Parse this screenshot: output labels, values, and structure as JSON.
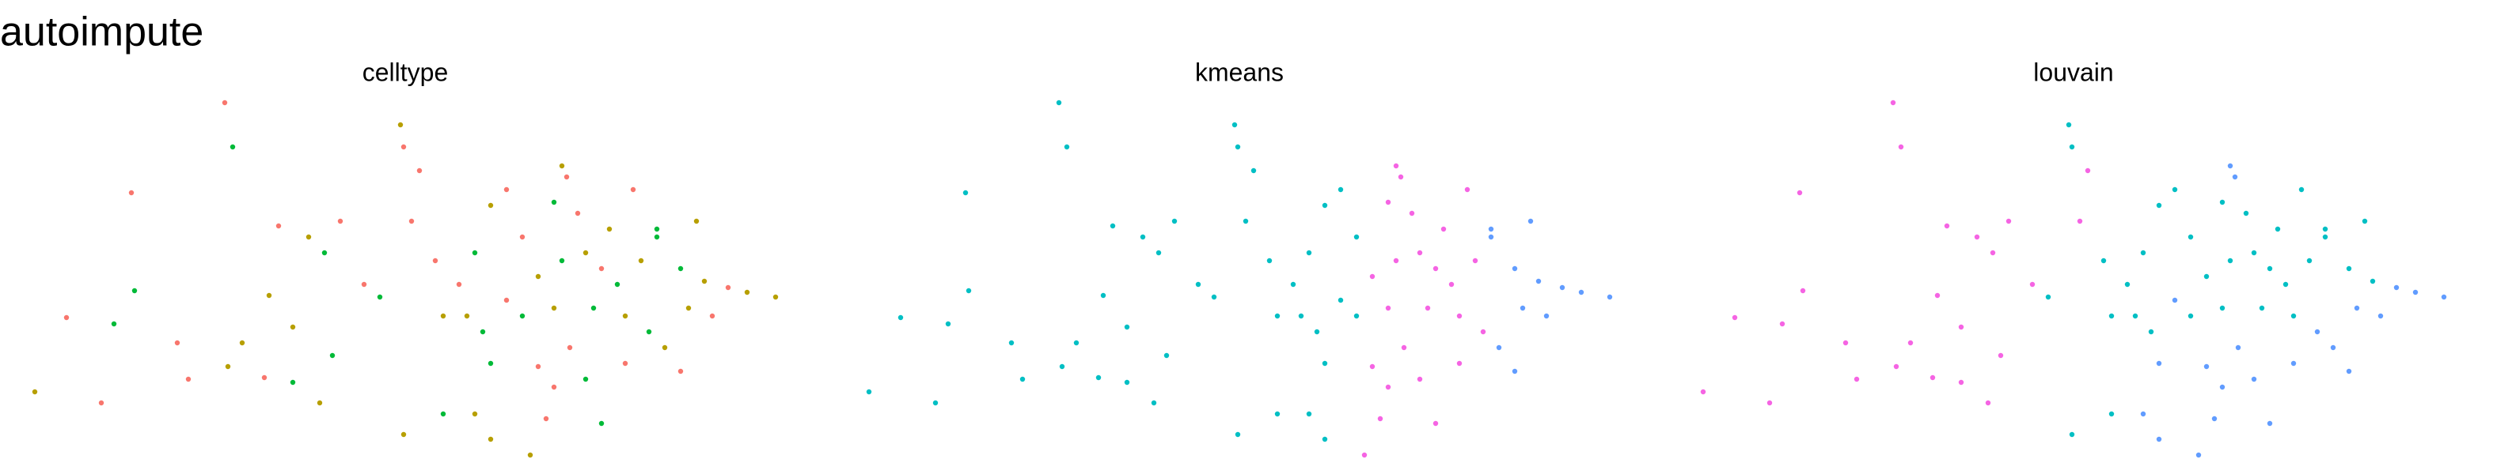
{
  "title": "autoimpute",
  "chart_data": [
    {
      "type": "scatter",
      "title": "celltype",
      "xlim": [
        0,
        500
      ],
      "ylim": [
        0,
        300
      ],
      "series": [
        {
          "color": "#F8766D",
          "x": [
            142,
            255,
            83,
            42,
            64,
            112,
            119,
            167,
            176,
            215,
            230,
            260,
            265,
            358,
            330,
            290,
            320,
            380,
            460,
            400,
            360,
            350,
            430,
            365,
            320,
            340,
            275,
            450,
            395,
            345
          ],
          "values": [
            235,
            207,
            178,
            99,
            45,
            83,
            60,
            61,
            157,
            160,
            120,
            160,
            192,
            188,
            150,
            120,
            110,
            130,
            118,
            180,
            80,
            55,
            65,
            165,
            180,
            68,
            135,
            100,
            70,
            35
          ]
        },
        {
          "color": "#B79F00",
          "x": [
            253,
            22,
            144,
            153,
            202,
            195,
            170,
            185,
            255,
            300,
            310,
            335,
            355,
            310,
            295,
            340,
            370,
            395,
            405,
            445,
            472,
            490,
            420,
            350,
            385,
            280,
            440,
            435
          ],
          "values": [
            221,
            52,
            68,
            83,
            45,
            150,
            113,
            93,
            25,
            38,
            22,
            12,
            195,
            170,
            100,
            125,
            140,
            100,
            135,
            122,
            115,
            112,
            80,
            105,
            155,
            100,
            160,
            105
          ]
        },
        {
          "color": "#00BA38",
          "x": [
            147,
            85,
            72,
            185,
            205,
            210,
            240,
            280,
            350,
            300,
            305,
            355,
            390,
            415,
            430,
            415,
            370,
            380,
            330,
            410,
            375,
            310
          ],
          "values": [
            207,
            116,
            95,
            58,
            140,
            75,
            112,
            38,
            172,
            140,
            90,
            135,
            120,
            150,
            130,
            155,
            60,
            32,
            100,
            90,
            105,
            70
          ]
        }
      ]
    },
    {
      "type": "scatter",
      "title": "kmeans",
      "xlim": [
        0,
        500
      ],
      "ylim": [
        0,
        300
      ],
      "series": [
        {
          "color": "#00BFC4",
          "x": [
            142,
            147,
            253,
            255,
            83,
            85,
            42,
            72,
            22,
            64,
            112,
            119,
            144,
            153,
            167,
            185,
            202,
            176,
            195,
            205,
            215,
            170,
            185,
            210,
            230,
            240,
            260,
            265,
            255,
            280,
            300,
            310,
            330,
            310,
            300,
            290,
            295,
            305,
            320,
            330,
            320,
            310,
            280,
            275
          ],
          "values": [
            235,
            207,
            221,
            207,
            178,
            116,
            99,
            95,
            52,
            45,
            83,
            60,
            68,
            83,
            61,
            58,
            45,
            157,
            150,
            140,
            160,
            113,
            93,
            75,
            120,
            112,
            160,
            192,
            25,
            38,
            38,
            22,
            150,
            170,
            140,
            120,
            100,
            90,
            110,
            100,
            180,
            70,
            100,
            135
          ]
        },
        {
          "color": "#F564E3",
          "x": [
            335,
            355,
            358,
            350,
            340,
            355,
            370,
            380,
            390,
            395,
            405,
            400,
            360,
            370,
            380,
            350,
            410,
            350,
            375,
            385,
            365,
            340,
            395,
            345
          ],
          "values": [
            12,
            195,
            188,
            172,
            125,
            135,
            140,
            130,
            120,
            100,
            135,
            180,
            80,
            60,
            32,
            55,
            90,
            105,
            105,
            155,
            165,
            68,
            70,
            35
          ]
        },
        {
          "color": "#619CFF",
          "x": [
            415,
            430,
            445,
            460,
            472,
            490,
            415,
            420,
            430,
            440,
            450,
            435
          ],
          "values": [
            150,
            130,
            122,
            118,
            115,
            112,
            155,
            80,
            65,
            160,
            100,
            105
          ]
        }
      ]
    },
    {
      "type": "scatter",
      "title": "louvain",
      "xlim": [
        0,
        500
      ],
      "ylim": [
        0,
        300
      ],
      "series": [
        {
          "color": "#F564E3",
          "x": [
            142,
            147,
            83,
            85,
            42,
            72,
            22,
            64,
            112,
            119,
            144,
            153,
            167,
            185,
            202,
            176,
            195,
            205,
            215,
            170,
            185,
            210,
            230,
            260,
            265
          ],
          "values": [
            235,
            207,
            178,
            116,
            99,
            95,
            52,
            45,
            83,
            60,
            68,
            83,
            61,
            58,
            45,
            157,
            150,
            140,
            160,
            113,
            93,
            75,
            120,
            160,
            192
          ]
        },
        {
          "color": "#00BFC4",
          "x": [
            253,
            255,
            240,
            255,
            280,
            350,
            330,
            310,
            300,
            290,
            295,
            305,
            340,
            355,
            370,
            380,
            390,
            395,
            405,
            415,
            430,
            445,
            400,
            415,
            330,
            350,
            375,
            385,
            365,
            320,
            280,
            275,
            440
          ],
          "values": [
            221,
            207,
            112,
            25,
            38,
            172,
            150,
            170,
            140,
            120,
            100,
            90,
            125,
            135,
            140,
            130,
            120,
            100,
            135,
            150,
            130,
            122,
            180,
            155,
            100,
            105,
            105,
            155,
            165,
            180,
            100,
            135,
            160
          ]
        },
        {
          "color": "#619CFF",
          "x": [
            300,
            310,
            335,
            355,
            358,
            320,
            460,
            472,
            490,
            360,
            370,
            380,
            350,
            420,
            430,
            410,
            340,
            310,
            450,
            435,
            395,
            345
          ],
          "values": [
            38,
            22,
            12,
            195,
            188,
            110,
            118,
            115,
            112,
            80,
            60,
            32,
            55,
            80,
            65,
            90,
            68,
            70,
            100,
            105,
            70,
            35
          ]
        }
      ]
    }
  ]
}
